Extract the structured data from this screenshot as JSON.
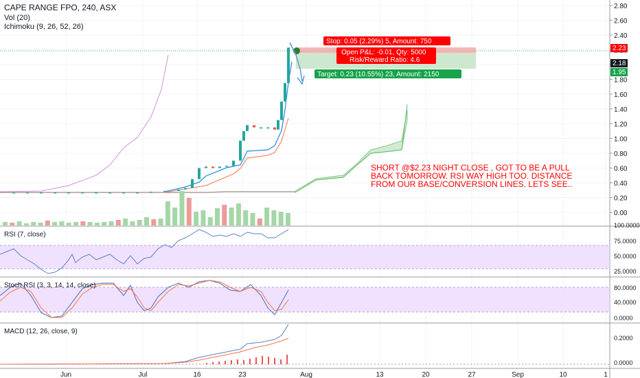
{
  "header": {
    "symbol_title": "CAPE RANGE FPO, 240, ASX",
    "vol_legend": "Vol (20)",
    "ichimoku_legend": "Ichimoku (9, 26, 52, 26)"
  },
  "panes": {
    "rsi_label": "RSI (7, close)",
    "stoch_label": "Stoch RSI (3, 3, 14, 14, close)",
    "macd_label": "MACD (12, 26, close, 9)"
  },
  "position": {
    "stop_label": "Stop: 0.05 (2.29%) 5, Amount: 750",
    "pnl_label": "Open P&L: -0.01, Qty: 5000",
    "rr_label": "Risk/Reward Ratio: 4.6",
    "target_label": "Target: 0.23 (10.55%) 23, Amount: 2150",
    "entry": 2.18,
    "stop": 2.23,
    "target": 1.95
  },
  "annotation": "SHORT @$2.23 NIGHT CLOSE , GOT TO BE A PULL BACK TOMORROW. RSI WAY HIGH TOO. DISTANCE FROM OUR BASE/CONVERSION LINES. LETS SEE..",
  "price_badges": [
    "2.23",
    "2.18",
    "1.95"
  ],
  "colors": {
    "up": "#26a69a",
    "down": "#ef5350",
    "stop_red": "#ff0000",
    "target_green": "#16a34a",
    "rsi_band": "#e9d5ff",
    "annotation": "#ff0000"
  },
  "chart_data": [
    {
      "type": "line",
      "title": "CAPE RANGE FPO, 240, ASX",
      "x_ticks": [
        "Jun",
        "Jul",
        "16",
        "23",
        "Aug",
        "13",
        "20",
        "27",
        "Sep",
        "10",
        "1"
      ],
      "y_ticks": [
        "2.80",
        "2.60",
        "2.40",
        "2.20",
        "2.00",
        "1.80",
        "1.60",
        "1.40",
        "1.20",
        "1.00",
        "0.80",
        "0.60",
        "0.40",
        "0.20",
        "0.00"
      ],
      "ylim": [
        -0.1,
        2.9
      ],
      "series": [
        {
          "name": "Price",
          "x": [
            0,
            20,
            40,
            60,
            80,
            100,
            120,
            140,
            160,
            180,
            200,
            220,
            240,
            260,
            270,
            280,
            290,
            300,
            310,
            320,
            330,
            340,
            350,
            355,
            360,
            370,
            380,
            390,
            400,
            405,
            410,
            415,
            420
          ],
          "values": [
            0.27,
            0.27,
            0.27,
            0.27,
            0.27,
            0.27,
            0.27,
            0.27,
            0.27,
            0.27,
            0.27,
            0.28,
            0.29,
            0.31,
            0.33,
            0.45,
            0.6,
            0.62,
            0.6,
            0.62,
            0.63,
            0.7,
            0.97,
            1.1,
            1.18,
            1.15,
            1.15,
            1.15,
            1.12,
            1.25,
            1.5,
            1.75,
            2.23
          ]
        }
      ],
      "grid": true
    },
    {
      "type": "line",
      "title": "RSI (7, close)",
      "y_ticks": [
        "100.0000",
        "75.0000",
        "50.0000",
        "25.0000"
      ],
      "ylim": [
        20,
        100
      ]
    },
    {
      "type": "line",
      "title": "Stoch RSI (3, 3, 14, 14, close)",
      "y_ticks": [
        "80.0000",
        "40.0000",
        "0.0000"
      ],
      "ylim": [
        -5,
        100
      ]
    },
    {
      "type": "bar",
      "title": "MACD (12, 26, close, 9)",
      "y_ticks": [
        "0.2000",
        "0.0000"
      ],
      "ylim": [
        -0.02,
        0.3
      ]
    }
  ]
}
